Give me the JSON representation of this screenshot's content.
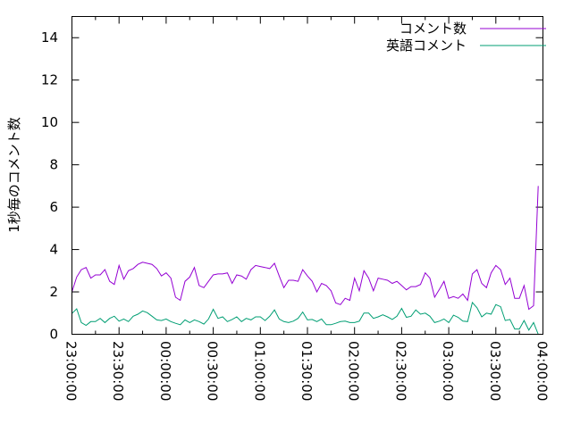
{
  "chart_data": {
    "type": "line",
    "title": "",
    "xlabel": "",
    "ylabel": "1秒毎のコメント数",
    "ylim": [
      0,
      15
    ],
    "yticks": [
      "0",
      "2",
      "4",
      "6",
      "8",
      "10",
      "12",
      "14"
    ],
    "xlim": [
      "23:00:00",
      "04:00:00"
    ],
    "xticks": [
      "23:00:00",
      "23:30:00",
      "00:00:00",
      "00:30:00",
      "01:00:00",
      "01:30:00",
      "02:00:00",
      "02:30:00",
      "03:00:00",
      "03:30:00",
      "04:00:00"
    ],
    "grid": false,
    "legend_position": "top-right",
    "x": [
      "23:00:00",
      "23:03:00",
      "23:06:00",
      "23:09:00",
      "23:12:00",
      "23:15:00",
      "23:18:00",
      "23:21:00",
      "23:24:00",
      "23:27:00",
      "23:30:00",
      "23:33:00",
      "23:36:00",
      "23:39:00",
      "23:42:00",
      "23:45:00",
      "23:48:00",
      "23:51:00",
      "23:54:00",
      "23:57:00",
      "00:00:00",
      "00:03:00",
      "00:06:00",
      "00:09:00",
      "00:12:00",
      "00:15:00",
      "00:18:00",
      "00:21:00",
      "00:24:00",
      "00:27:00",
      "00:30:00",
      "00:33:00",
      "00:36:00",
      "00:39:00",
      "00:42:00",
      "00:45:00",
      "00:48:00",
      "00:51:00",
      "00:54:00",
      "00:57:00",
      "01:00:00",
      "01:03:00",
      "01:06:00",
      "01:09:00",
      "01:12:00",
      "01:15:00",
      "01:18:00",
      "01:21:00",
      "01:24:00",
      "01:27:00",
      "01:30:00",
      "01:33:00",
      "01:36:00",
      "01:39:00",
      "01:42:00",
      "01:45:00",
      "01:48:00",
      "01:51:00",
      "01:54:00",
      "01:57:00",
      "02:00:00",
      "02:03:00",
      "02:06:00",
      "02:09:00",
      "02:12:00",
      "02:15:00",
      "02:18:00",
      "02:21:00",
      "02:24:00",
      "02:27:00",
      "02:30:00",
      "02:33:00",
      "02:36:00",
      "02:39:00",
      "02:42:00",
      "02:45:00",
      "02:48:00",
      "02:51:00",
      "02:54:00",
      "02:57:00",
      "03:00:00",
      "03:03:00",
      "03:06:00",
      "03:09:00",
      "03:12:00",
      "03:15:00",
      "03:18:00",
      "03:21:00",
      "03:24:00",
      "03:27:00",
      "03:30:00",
      "03:33:00",
      "03:36:00",
      "03:39:00",
      "03:42:00",
      "03:45:00",
      "03:48:00",
      "03:51:00",
      "03:54:00",
      "03:57:00"
    ],
    "series": [
      {
        "name": "コメント数",
        "color": "#9400d3",
        "values": [
          2.0,
          2.7,
          3.05,
          3.15,
          2.65,
          2.8,
          2.8,
          3.05,
          2.5,
          2.35,
          3.25,
          2.6,
          3.0,
          3.1,
          3.3,
          3.4,
          3.35,
          3.3,
          3.1,
          2.75,
          2.9,
          2.65,
          1.75,
          1.6,
          2.5,
          2.7,
          3.15,
          2.3,
          2.2,
          2.5,
          2.8,
          2.85,
          2.85,
          2.9,
          2.4,
          2.8,
          2.75,
          2.6,
          3.05,
          3.25,
          3.2,
          3.15,
          3.1,
          3.35,
          2.75,
          2.2,
          2.55,
          2.55,
          2.5,
          3.05,
          2.75,
          2.5,
          2.0,
          2.4,
          2.3,
          2.05,
          1.48,
          1.4,
          1.7,
          1.6,
          2.65,
          2.05,
          3.0,
          2.65,
          2.05,
          2.65,
          2.6,
          2.55,
          2.4,
          2.5,
          2.3,
          2.1,
          2.25,
          2.25,
          2.35,
          2.9,
          2.65,
          1.75,
          2.12,
          2.5,
          1.7,
          1.78,
          1.7,
          1.9,
          1.6,
          2.85,
          3.05,
          2.4,
          2.2,
          2.9,
          3.25,
          3.05,
          2.35,
          2.65,
          1.7,
          1.7,
          2.3,
          1.18,
          1.35,
          7.0
        ]
      },
      {
        "name": "英語コメント",
        "color": "#009e73",
        "values": [
          0.98,
          1.2,
          0.55,
          0.42,
          0.6,
          0.6,
          0.75,
          0.55,
          0.75,
          0.85,
          0.62,
          0.72,
          0.6,
          0.85,
          0.95,
          1.1,
          1.02,
          0.85,
          0.68,
          0.65,
          0.72,
          0.6,
          0.52,
          0.45,
          0.68,
          0.55,
          0.68,
          0.6,
          0.48,
          0.72,
          1.18,
          0.75,
          0.82,
          0.6,
          0.7,
          0.82,
          0.6,
          0.75,
          0.68,
          0.82,
          0.82,
          0.65,
          0.85,
          1.15,
          0.72,
          0.6,
          0.55,
          0.62,
          0.75,
          1.05,
          0.68,
          0.7,
          0.6,
          0.72,
          0.45,
          0.45,
          0.52,
          0.6,
          0.62,
          0.55,
          0.55,
          0.62,
          1.0,
          1.0,
          0.75,
          0.82,
          0.92,
          0.82,
          0.7,
          0.85,
          1.22,
          0.8,
          0.85,
          1.15,
          0.95,
          1.0,
          0.85,
          0.55,
          0.62,
          0.72,
          0.55,
          0.9,
          0.8,
          0.62,
          0.6,
          1.5,
          1.25,
          0.82,
          1.0,
          0.95,
          1.4,
          1.3,
          0.65,
          0.7,
          0.25,
          0.25,
          0.65,
          0.2,
          0.55,
          0.0
        ]
      }
    ]
  }
}
